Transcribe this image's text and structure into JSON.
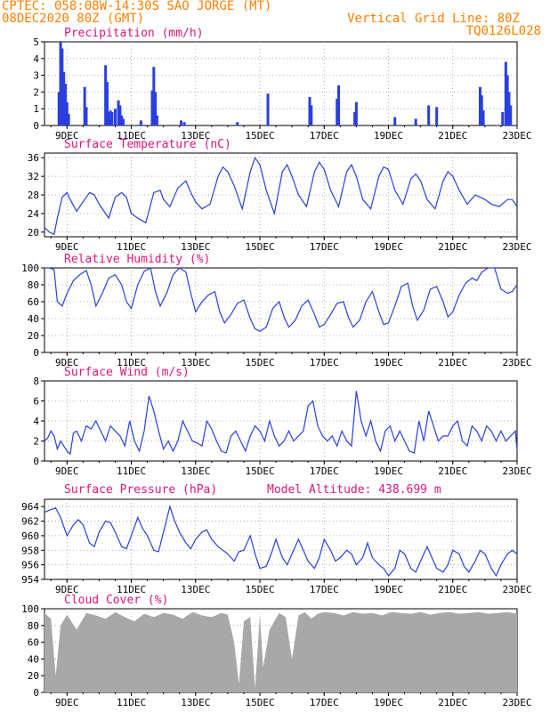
{
  "header": {
    "station": "CPTEC:  058:08W-14:30S  SAO JORGE (MT)",
    "run": "08DEC2020 80Z (GMT)",
    "grid_note": "Vertical Grid Line: 80Z",
    "code": "TQ0126L028"
  },
  "colors": {
    "header": "#ff7f00",
    "title": "#e0157a",
    "line": "#2a3fe0",
    "bar": "#2a3fe0",
    "cloud": "#a8a8a8",
    "grid": "#9a9a9a"
  },
  "chart_data": [
    {
      "type": "bar",
      "title": "Precipitation (mm/h)",
      "ylim": [
        0,
        5
      ],
      "yticks": [
        0,
        1,
        2,
        3,
        4,
        5
      ],
      "xlim": [
        8.3,
        23
      ],
      "xticks": [
        9,
        11,
        13,
        15,
        17,
        19,
        21,
        23
      ],
      "xticklabels": [
        "9DEC",
        "11DEC",
        "13DEC",
        "15DEC",
        "17DEC",
        "19DEC",
        "21DEC",
        "23DEC"
      ],
      "x": [
        8.75,
        8.8,
        8.85,
        8.9,
        8.95,
        9.0,
        9.05,
        9.55,
        9.6,
        10.2,
        10.25,
        10.3,
        10.35,
        10.4,
        10.5,
        10.6,
        10.65,
        10.7,
        10.75,
        11.3,
        11.65,
        11.7,
        11.75,
        11.8,
        12.55,
        12.65,
        14.3,
        15.25,
        16.55,
        16.6,
        17.4,
        17.45,
        17.95,
        18.0,
        19.2,
        19.85,
        20.25,
        20.5,
        21.85,
        21.9,
        21.95,
        22.55,
        22.65,
        22.7,
        22.75,
        22.8
      ],
      "values": [
        2.0,
        5.0,
        4.6,
        3.2,
        2.5,
        1.4,
        0.7,
        2.3,
        1.1,
        3.6,
        2.6,
        0.8,
        0.9,
        0.8,
        1.0,
        1.5,
        1.2,
        0.6,
        0.4,
        0.3,
        2.1,
        3.5,
        2.0,
        0.6,
        0.3,
        0.2,
        0.2,
        1.9,
        1.7,
        1.2,
        1.6,
        2.4,
        0.8,
        1.4,
        0.5,
        0.4,
        1.2,
        1.1,
        2.3,
        1.8,
        0.9,
        0.8,
        3.8,
        3.0,
        2.0,
        1.2
      ]
    },
    {
      "type": "line",
      "title": "Surface Temperature (nC)",
      "ylim": [
        19,
        37
      ],
      "yticks": [
        20,
        24,
        28,
        32,
        36
      ],
      "xlim": [
        8.3,
        23
      ],
      "xticks": [
        9,
        11,
        13,
        15,
        17,
        19,
        21,
        23
      ],
      "xticklabels": [
        "9DEC",
        "11DEC",
        "13DEC",
        "15DEC",
        "17DEC",
        "19DEC",
        "21DEC",
        "23DEC"
      ],
      "x": [
        8.3,
        8.45,
        8.6,
        8.7,
        8.85,
        9.0,
        9.1,
        9.3,
        9.5,
        9.7,
        9.85,
        10.0,
        10.3,
        10.5,
        10.7,
        10.85,
        11.0,
        11.2,
        11.45,
        11.7,
        11.9,
        12.0,
        12.2,
        12.45,
        12.7,
        12.85,
        13.0,
        13.2,
        13.45,
        13.7,
        13.85,
        14.0,
        14.2,
        14.45,
        14.7,
        14.85,
        15.0,
        15.2,
        15.45,
        15.7,
        15.85,
        16.0,
        16.2,
        16.45,
        16.7,
        16.85,
        17.0,
        17.2,
        17.45,
        17.7,
        17.85,
        18.0,
        18.2,
        18.45,
        18.7,
        18.85,
        19.0,
        19.2,
        19.45,
        19.7,
        19.85,
        20.0,
        20.2,
        20.45,
        20.7,
        20.85,
        21.0,
        21.2,
        21.45,
        21.7,
        21.85,
        22.0,
        22.2,
        22.45,
        22.7,
        22.85,
        23.0
      ],
      "values": [
        21.0,
        20.0,
        19.5,
        23.0,
        27.5,
        28.5,
        27.0,
        24.5,
        26.5,
        28.5,
        28.0,
        26.0,
        23.0,
        27.5,
        28.5,
        27.5,
        24.0,
        23.0,
        22.0,
        28.5,
        29.0,
        27.0,
        25.5,
        29.5,
        31.0,
        28.5,
        26.5,
        25.0,
        26.0,
        32.0,
        34.0,
        33.0,
        30.0,
        25.0,
        33.0,
        36.0,
        34.5,
        29.0,
        24.0,
        33.0,
        34.5,
        32.0,
        28.0,
        25.5,
        33.0,
        35.0,
        33.5,
        29.0,
        25.5,
        33.0,
        34.5,
        32.0,
        27.0,
        25.0,
        32.0,
        34.0,
        33.5,
        29.0,
        26.0,
        31.5,
        32.5,
        31.0,
        27.0,
        25.0,
        31.0,
        33.0,
        32.0,
        29.0,
        26.0,
        28.0,
        27.5,
        27.0,
        26.0,
        25.5,
        27.0,
        27.0,
        25.5
      ]
    },
    {
      "type": "line",
      "title": "Relative Humidity (%)",
      "ylim": [
        0,
        100
      ],
      "yticks": [
        0,
        20,
        40,
        60,
        80,
        100
      ],
      "xlim": [
        8.3,
        23
      ],
      "xticks": [
        9,
        11,
        13,
        15,
        17,
        19,
        21,
        23
      ],
      "xticklabels": [
        "9DEC",
        "11DEC",
        "13DEC",
        "15DEC",
        "17DEC",
        "19DEC",
        "21DEC",
        "23DEC"
      ],
      "x": [
        8.3,
        8.45,
        8.6,
        8.7,
        8.85,
        9.0,
        9.2,
        9.4,
        9.6,
        9.75,
        9.9,
        10.1,
        10.3,
        10.5,
        10.7,
        10.85,
        11.0,
        11.2,
        11.4,
        11.6,
        11.75,
        11.9,
        12.1,
        12.3,
        12.5,
        12.7,
        12.85,
        13.0,
        13.2,
        13.4,
        13.6,
        13.75,
        13.9,
        14.1,
        14.3,
        14.5,
        14.7,
        14.85,
        15.0,
        15.2,
        15.4,
        15.6,
        15.75,
        15.9,
        16.1,
        16.3,
        16.5,
        16.7,
        16.85,
        17.0,
        17.2,
        17.4,
        17.6,
        17.75,
        17.9,
        18.1,
        18.3,
        18.5,
        18.7,
        18.85,
        19.0,
        19.2,
        19.4,
        19.6,
        19.75,
        19.9,
        20.1,
        20.3,
        20.5,
        20.7,
        20.85,
        21.0,
        21.2,
        21.4,
        21.6,
        21.75,
        21.9,
        22.1,
        22.3,
        22.5,
        22.7,
        22.85,
        23.0
      ],
      "values": [
        100,
        100,
        98,
        60,
        55,
        70,
        85,
        92,
        97,
        80,
        55,
        70,
        88,
        92,
        80,
        60,
        52,
        80,
        96,
        100,
        72,
        55,
        70,
        92,
        100,
        95,
        70,
        48,
        60,
        68,
        72,
        48,
        35,
        45,
        58,
        62,
        40,
        28,
        25,
        30,
        52,
        60,
        42,
        30,
        38,
        55,
        62,
        45,
        30,
        33,
        45,
        58,
        60,
        42,
        30,
        38,
        60,
        72,
        48,
        33,
        35,
        55,
        78,
        82,
        55,
        38,
        50,
        75,
        78,
        60,
        42,
        48,
        68,
        82,
        88,
        85,
        95,
        100,
        100,
        75,
        70,
        72,
        80
      ]
    },
    {
      "type": "line",
      "title": "Surface Wind (m/s)",
      "ylim": [
        0,
        8
      ],
      "yticks": [
        0,
        2,
        4,
        6,
        8
      ],
      "xlim": [
        8.3,
        23
      ],
      "xticks": [
        9,
        11,
        13,
        15,
        17,
        19,
        21,
        23
      ],
      "xticklabels": [
        "9DEC",
        "11DEC",
        "13DEC",
        "15DEC",
        "17DEC",
        "19DEC",
        "21DEC",
        "23DEC"
      ],
      "x": [
        8.3,
        8.4,
        8.5,
        8.6,
        8.7,
        8.8,
        8.9,
        9.0,
        9.1,
        9.2,
        9.3,
        9.45,
        9.6,
        9.75,
        9.9,
        10.05,
        10.2,
        10.35,
        10.5,
        10.65,
        10.8,
        10.95,
        11.1,
        11.25,
        11.4,
        11.55,
        11.7,
        11.85,
        12.0,
        12.15,
        12.3,
        12.45,
        12.6,
        12.75,
        12.9,
        13.05,
        13.2,
        13.35,
        13.5,
        13.65,
        13.8,
        13.95,
        14.1,
        14.25,
        14.4,
        14.55,
        14.7,
        14.85,
        15.0,
        15.15,
        15.3,
        15.45,
        15.6,
        15.75,
        15.9,
        16.05,
        16.2,
        16.35,
        16.5,
        16.65,
        16.8,
        16.95,
        17.1,
        17.25,
        17.4,
        17.55,
        17.7,
        17.85,
        18.0,
        18.15,
        18.3,
        18.45,
        18.6,
        18.75,
        18.9,
        19.05,
        19.2,
        19.35,
        19.5,
        19.65,
        19.8,
        19.95,
        20.1,
        20.25,
        20.4,
        20.55,
        20.7,
        20.85,
        21.0,
        21.15,
        21.3,
        21.45,
        21.6,
        21.75,
        21.9,
        22.05,
        22.2,
        22.35,
        22.5,
        22.65,
        22.8,
        22.95,
        23.0
      ],
      "values": [
        2.0,
        2.3,
        3.0,
        2.5,
        1.2,
        2.0,
        1.5,
        1.0,
        0.7,
        2.8,
        3.0,
        2.0,
        3.5,
        3.2,
        4.0,
        3.0,
        2.0,
        3.5,
        3.0,
        2.5,
        1.5,
        4.0,
        2.0,
        1.0,
        3.0,
        6.5,
        5.0,
        3.0,
        1.2,
        2.0,
        1.0,
        2.0,
        4.0,
        3.0,
        2.0,
        1.8,
        1.5,
        4.0,
        3.2,
        2.0,
        1.0,
        0.8,
        2.5,
        3.0,
        2.0,
        1.0,
        2.5,
        3.5,
        3.0,
        2.0,
        4.0,
        2.5,
        1.5,
        2.0,
        3.0,
        2.0,
        2.5,
        3.0,
        5.5,
        6.0,
        3.5,
        2.5,
        2.0,
        2.5,
        1.5,
        3.0,
        2.0,
        1.5,
        7.0,
        4.0,
        2.5,
        4.0,
        2.0,
        1.0,
        3.0,
        3.5,
        2.0,
        3.0,
        2.0,
        1.0,
        0.8,
        4.0,
        2.0,
        5.0,
        3.5,
        2.0,
        2.5,
        2.5,
        3.5,
        4.0,
        2.0,
        1.5,
        3.5,
        3.0,
        2.0,
        3.5,
        3.0,
        2.0,
        3.0,
        2.0,
        2.5,
        3.0,
        1.0
      ]
    },
    {
      "type": "line",
      "title": "Surface Pressure (hPa)",
      "model_altitude": "Model Altitude: 438.699 m",
      "ylim": [
        954,
        965
      ],
      "yticks": [
        954,
        956,
        958,
        960,
        962,
        964
      ],
      "xlim": [
        8.3,
        23
      ],
      "xticks": [
        9,
        11,
        13,
        15,
        17,
        19,
        21,
        23
      ],
      "xticklabels": [
        "9DEC",
        "11DEC",
        "13DEC",
        "15DEC",
        "17DEC",
        "19DEC",
        "21DEC",
        "23DEC"
      ],
      "x": [
        8.3,
        8.5,
        8.65,
        8.8,
        9.0,
        9.2,
        9.35,
        9.5,
        9.7,
        9.85,
        10.0,
        10.2,
        10.35,
        10.5,
        10.7,
        10.85,
        11.0,
        11.2,
        11.35,
        11.5,
        11.7,
        11.85,
        12.0,
        12.2,
        12.35,
        12.5,
        12.7,
        12.85,
        13.0,
        13.2,
        13.35,
        13.5,
        13.7,
        13.85,
        14.0,
        14.2,
        14.35,
        14.5,
        14.7,
        14.85,
        15.0,
        15.2,
        15.35,
        15.5,
        15.7,
        15.85,
        16.0,
        16.2,
        16.35,
        16.5,
        16.7,
        16.85,
        17.0,
        17.2,
        17.35,
        17.5,
        17.7,
        17.85,
        18.0,
        18.2,
        18.35,
        18.5,
        18.7,
        18.85,
        19.0,
        19.2,
        19.35,
        19.5,
        19.7,
        19.85,
        20.0,
        20.2,
        20.35,
        20.5,
        20.7,
        20.85,
        21.0,
        21.2,
        21.35,
        21.5,
        21.7,
        21.85,
        22.0,
        22.2,
        22.35,
        22.5,
        22.7,
        22.85,
        23.0
      ],
      "values": [
        963.2,
        963.6,
        963.8,
        962.5,
        960.0,
        961.5,
        962.2,
        961.5,
        959.0,
        958.5,
        960.5,
        962.0,
        961.8,
        960.5,
        958.5,
        958.2,
        960.0,
        962.5,
        961.0,
        960.0,
        958.0,
        957.8,
        960.5,
        964.0,
        962.0,
        960.5,
        959.0,
        958.2,
        959.5,
        960.5,
        960.8,
        959.5,
        958.5,
        958.0,
        957.5,
        956.5,
        957.8,
        958.0,
        960.0,
        957.5,
        955.5,
        955.8,
        957.5,
        959.5,
        957.0,
        956.0,
        957.5,
        959.5,
        958.0,
        956.5,
        955.5,
        957.0,
        959.5,
        958.0,
        956.5,
        957.0,
        958.0,
        957.5,
        956.0,
        957.0,
        959.0,
        957.0,
        956.0,
        955.5,
        954.5,
        955.5,
        958.0,
        957.5,
        955.5,
        955.0,
        956.5,
        958.5,
        957.0,
        955.5,
        955.0,
        956.0,
        958.0,
        957.5,
        955.8,
        955.0,
        956.5,
        958.0,
        957.5,
        955.5,
        954.5,
        956.0,
        957.5,
        958.0,
        957.5
      ]
    },
    {
      "type": "area",
      "title": "Cloud Cover (%)",
      "ylim": [
        0,
        100
      ],
      "yticks": [
        0,
        20,
        40,
        60,
        80,
        100
      ],
      "xlim": [
        8.3,
        23
      ],
      "xticks": [
        9,
        11,
        13,
        15,
        17,
        19,
        21,
        23
      ],
      "xticklabels": [
        "9DEC",
        "11DEC",
        "13DEC",
        "15DEC",
        "17DEC",
        "19DEC",
        "21DEC",
        "23DEC"
      ],
      "x": [
        8.3,
        8.5,
        8.65,
        8.8,
        9.0,
        9.3,
        9.6,
        9.9,
        10.2,
        10.5,
        10.8,
        11.1,
        11.4,
        11.7,
        12.0,
        12.3,
        12.6,
        12.9,
        13.2,
        13.5,
        13.8,
        14.0,
        14.2,
        14.35,
        14.5,
        14.7,
        14.85,
        15.0,
        15.1,
        15.3,
        15.6,
        15.8,
        16.0,
        16.2,
        16.4,
        16.6,
        16.8,
        17.0,
        17.3,
        17.6,
        17.9,
        18.2,
        18.5,
        18.8,
        19.1,
        19.4,
        19.7,
        20.0,
        20.3,
        20.6,
        20.9,
        21.2,
        21.5,
        21.8,
        22.1,
        22.4,
        22.7,
        23.0
      ],
      "values": [
        95,
        88,
        20,
        80,
        93,
        75,
        95,
        92,
        88,
        96,
        90,
        85,
        94,
        90,
        95,
        93,
        88,
        96,
        92,
        90,
        95,
        93,
        60,
        10,
        85,
        90,
        5,
        92,
        30,
        75,
        95,
        90,
        40,
        92,
        96,
        88,
        94,
        96,
        95,
        92,
        96,
        94,
        95,
        92,
        96,
        95,
        94,
        96,
        93,
        95,
        96,
        94,
        95,
        96,
        94,
        95,
        96,
        94
      ]
    }
  ]
}
